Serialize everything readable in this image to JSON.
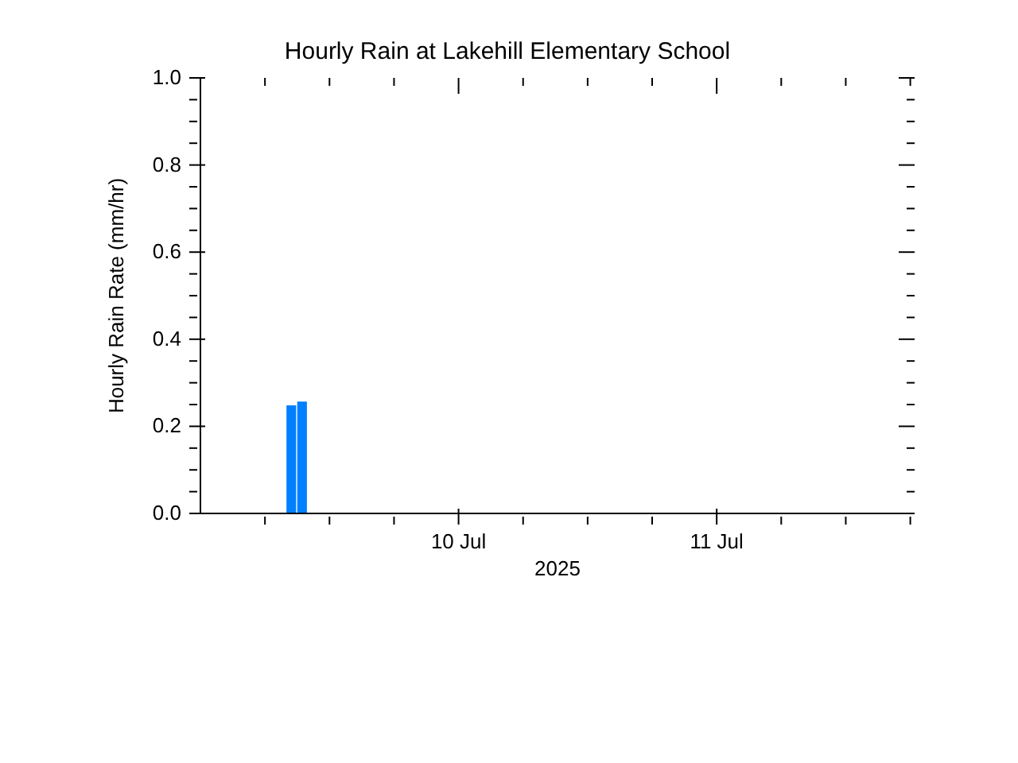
{
  "chart_data": {
    "type": "bar",
    "title": "Hourly Rain at Lakehill Elementary School",
    "xlabel": "2025",
    "ylabel": "Hourly Rain Rate (mm/hr)",
    "x": [
      "2025-07-09T08:30",
      "2025-07-09T09:30"
    ],
    "values": [
      0.248,
      0.257
    ],
    "color": "#0080ff",
    "xlim": [
      "2025-07-09T00:00",
      "2025-07-11T18:24"
    ],
    "xticks": [
      {
        "value": "2025-07-09T06:00",
        "label": null
      },
      {
        "value": "2025-07-09T12:00",
        "label": null
      },
      {
        "value": "2025-07-09T18:00",
        "label": null
      },
      {
        "value": "2025-07-10T00:00",
        "label": "10 Jul"
      },
      {
        "value": "2025-07-10T06:00",
        "label": null
      },
      {
        "value": "2025-07-10T12:00",
        "label": null
      },
      {
        "value": "2025-07-10T18:00",
        "label": null
      },
      {
        "value": "2025-07-11T00:00",
        "label": "11 Jul"
      },
      {
        "value": "2025-07-11T06:00",
        "label": null
      },
      {
        "value": "2025-07-11T12:00",
        "label": null
      },
      {
        "value": "2025-07-11T18:00",
        "label": null
      }
    ],
    "ylim": [
      0,
      1
    ],
    "yticks": [
      {
        "value": 0,
        "label": "0.0"
      },
      {
        "value": 0.05,
        "label": null
      },
      {
        "value": 0.1,
        "label": null
      },
      {
        "value": 0.15,
        "label": null
      },
      {
        "value": 0.2,
        "label": "0.2"
      },
      {
        "value": 0.25,
        "label": null
      },
      {
        "value": 0.3,
        "label": null
      },
      {
        "value": 0.35,
        "label": null
      },
      {
        "value": 0.4,
        "label": "0.4"
      },
      {
        "value": 0.45,
        "label": null
      },
      {
        "value": 0.5,
        "label": null
      },
      {
        "value": 0.55,
        "label": null
      },
      {
        "value": 0.6,
        "label": "0.6"
      },
      {
        "value": 0.65,
        "label": null
      },
      {
        "value": 0.7,
        "label": null
      },
      {
        "value": 0.75,
        "label": null
      },
      {
        "value": 0.8,
        "label": "0.8"
      },
      {
        "value": 0.85,
        "label": null
      },
      {
        "value": 0.9,
        "label": null
      },
      {
        "value": 0.95,
        "label": null
      },
      {
        "value": 1,
        "label": "1.0"
      }
    ],
    "grid": false,
    "legend": false
  }
}
